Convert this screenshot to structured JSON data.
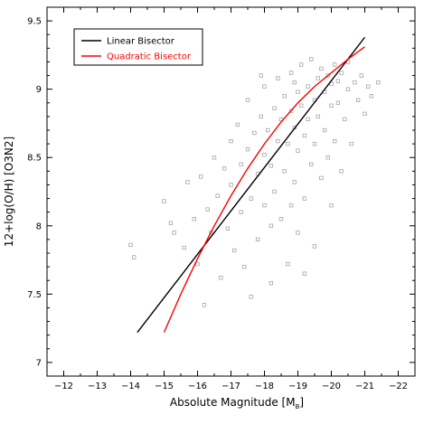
{
  "chart_data": {
    "type": "scatter",
    "xlabel": "Absolute Magnitude [M",
    "xlabel_sub": "B",
    "xlabel_close": "]",
    "ylabel": "12+log(O/H) [O3N2]",
    "xlim": [
      -11.5,
      -22.5
    ],
    "ylim": [
      6.9,
      9.6
    ],
    "x_ticks": [
      -12,
      -13,
      -14,
      -15,
      -16,
      -17,
      -18,
      -19,
      -20,
      -21,
      -22
    ],
    "x_tick_labels": [
      "−12",
      "−13",
      "−14",
      "−15",
      "−16",
      "−17",
      "−18",
      "−19",
      "−20",
      "−21",
      "−22"
    ],
    "y_ticks": [
      7,
      7.5,
      8,
      8.5,
      9,
      9.5
    ],
    "y_tick_labels": [
      "7",
      "7.5",
      "8",
      "8.5",
      "9",
      "9.5"
    ],
    "grid": false,
    "legend_position": "top-left",
    "scatter": {
      "color": "#9a9a9a",
      "marker": "open-square",
      "points": [
        [
          -14.0,
          7.86
        ],
        [
          -14.1,
          7.77
        ],
        [
          -15.3,
          7.95
        ],
        [
          -15.2,
          8.02
        ],
        [
          -15.6,
          7.84
        ],
        [
          -15.0,
          8.18
        ],
        [
          -15.7,
          8.32
        ],
        [
          -16.0,
          7.72
        ],
        [
          -15.9,
          8.05
        ],
        [
          -16.1,
          8.36
        ],
        [
          -16.3,
          8.12
        ],
        [
          -16.4,
          7.95
        ],
        [
          -16.5,
          8.5
        ],
        [
          -16.6,
          8.22
        ],
        [
          -16.7,
          7.62
        ],
        [
          -16.8,
          8.42
        ],
        [
          -16.9,
          7.98
        ],
        [
          -17.0,
          8.62
        ],
        [
          -17.0,
          8.3
        ],
        [
          -17.1,
          7.82
        ],
        [
          -17.2,
          8.74
        ],
        [
          -17.3,
          8.1
        ],
        [
          -17.3,
          8.45
        ],
        [
          -17.4,
          7.7
        ],
        [
          -17.5,
          8.56
        ],
        [
          -17.5,
          8.92
        ],
        [
          -17.6,
          8.2
        ],
        [
          -17.7,
          8.68
        ],
        [
          -17.8,
          7.9
        ],
        [
          -17.8,
          8.38
        ],
        [
          -17.9,
          8.8
        ],
        [
          -18.0,
          8.52
        ],
        [
          -18.0,
          8.15
        ],
        [
          -18.0,
          9.02
        ],
        [
          -18.1,
          8.7
        ],
        [
          -18.2,
          7.58
        ],
        [
          -18.2,
          8.44
        ],
        [
          -18.3,
          8.86
        ],
        [
          -18.3,
          8.25
        ],
        [
          -18.4,
          8.62
        ],
        [
          -18.4,
          9.08
        ],
        [
          -18.5,
          8.05
        ],
        [
          -18.5,
          8.78
        ],
        [
          -18.6,
          8.4
        ],
        [
          -18.6,
          8.95
        ],
        [
          -18.7,
          7.72
        ],
        [
          -18.7,
          8.6
        ],
        [
          -18.8,
          8.84
        ],
        [
          -18.8,
          9.12
        ],
        [
          -18.9,
          8.32
        ],
        [
          -18.9,
          8.72
        ],
        [
          -19.0,
          8.98
        ],
        [
          -19.0,
          8.55
        ],
        [
          -19.0,
          7.95
        ],
        [
          -19.1,
          8.88
        ],
        [
          -19.1,
          9.18
        ],
        [
          -19.2,
          8.66
        ],
        [
          -19.2,
          8.2
        ],
        [
          -19.3,
          9.02
        ],
        [
          -19.3,
          8.78
        ],
        [
          -19.4,
          8.45
        ],
        [
          -19.4,
          9.22
        ],
        [
          -19.5,
          8.92
        ],
        [
          -19.5,
          8.6
        ],
        [
          -19.5,
          7.85
        ],
        [
          -19.6,
          9.08
        ],
        [
          -19.6,
          8.8
        ],
        [
          -19.7,
          8.35
        ],
        [
          -19.7,
          9.15
        ],
        [
          -19.8,
          8.98
        ],
        [
          -19.8,
          8.7
        ],
        [
          -19.9,
          9.1
        ],
        [
          -19.9,
          8.5
        ],
        [
          -20.0,
          9.04
        ],
        [
          -20.0,
          8.88
        ],
        [
          -20.0,
          8.15
        ],
        [
          -20.1,
          9.18
        ],
        [
          -20.1,
          8.62
        ],
        [
          -20.2,
          9.06
        ],
        [
          -20.2,
          8.9
        ],
        [
          -20.3,
          8.4
        ],
        [
          -20.3,
          9.12
        ],
        [
          -20.4,
          8.78
        ],
        [
          -20.5,
          9.0
        ],
        [
          -20.5,
          9.2
        ],
        [
          -20.6,
          8.6
        ],
        [
          -20.7,
          9.05
        ],
        [
          -20.8,
          8.92
        ],
        [
          -20.9,
          9.1
        ],
        [
          -21.0,
          8.82
        ],
        [
          -21.1,
          9.02
        ],
        [
          -21.2,
          8.95
        ],
        [
          -21.4,
          9.05
        ],
        [
          -18.2,
          8.0
        ],
        [
          -17.6,
          7.48
        ],
        [
          -18.8,
          8.15
        ],
        [
          -19.2,
          7.65
        ],
        [
          -16.2,
          7.42
        ],
        [
          -17.9,
          9.1
        ],
        [
          -18.9,
          9.05
        ]
      ]
    },
    "series": [
      {
        "name": "Linear Bisector",
        "color": "#000000",
        "x": [
          -14.2,
          -21.0
        ],
        "y": [
          7.22,
          9.38
        ]
      },
      {
        "name": "Quadratic Bisector",
        "color": "#ff0000",
        "x": [
          -15.0,
          -15.5,
          -16.0,
          -16.5,
          -17.0,
          -17.5,
          -18.0,
          -18.5,
          -19.0,
          -19.5,
          -20.0,
          -20.5,
          -21.0
        ],
        "y": [
          7.22,
          7.5,
          7.76,
          8.0,
          8.22,
          8.42,
          8.6,
          8.76,
          8.9,
          9.02,
          9.12,
          9.22,
          9.31
        ]
      }
    ]
  }
}
